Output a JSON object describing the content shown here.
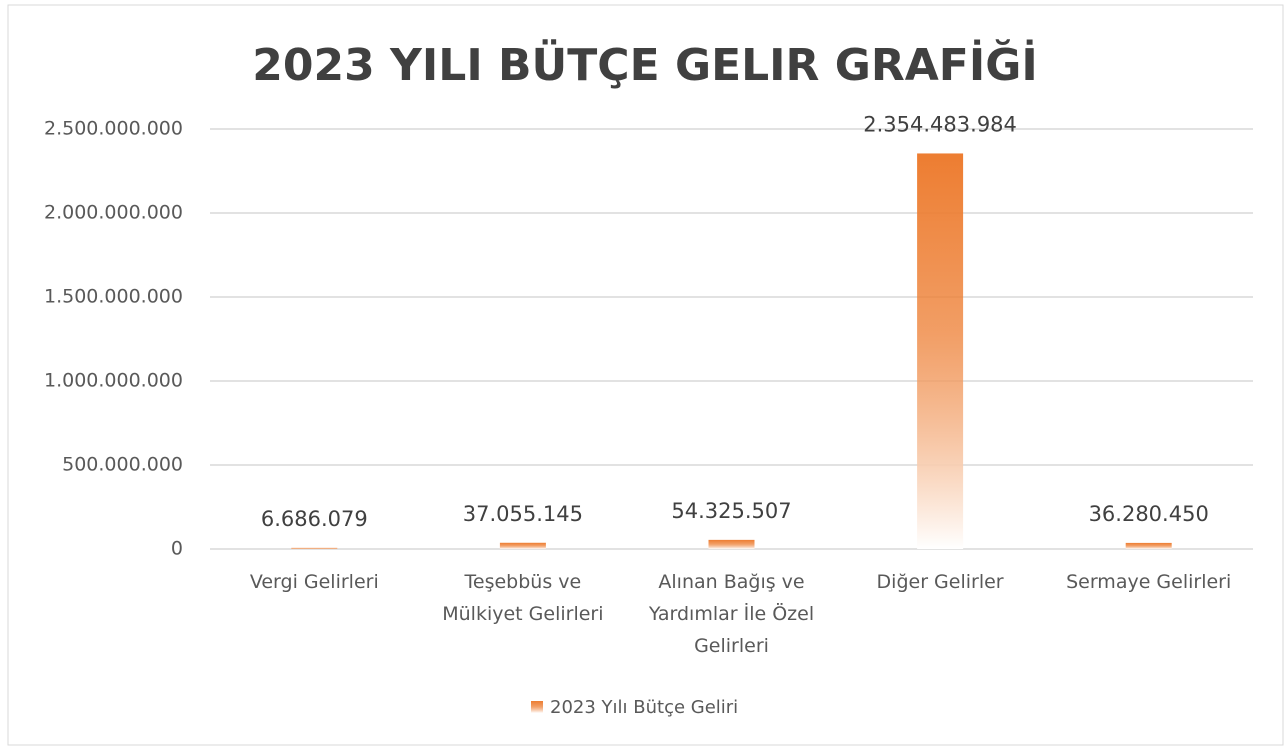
{
  "chart_data": {
    "type": "bar",
    "title": "2023 YILI BÜTÇE GELIR GRAFİĞİ",
    "categories": [
      "Vergi Gelirleri",
      "Teşebbüs ve Mülkiyet Gelirleri",
      "Alınan Bağış ve Yardımlar İle Özel Gelirleri",
      "Diğer Gelirler",
      "Sermaye Gelirleri"
    ],
    "series": [
      {
        "name": "2023 Yılı Bütçe Geliri",
        "color": "#ed7d31",
        "values": [
          6686079,
          37055145,
          54325507,
          2354483984,
          36280450
        ],
        "value_labels": [
          "6.686.079",
          "37.055.145",
          "54.325.507",
          "2.354.483.984",
          "36.280.450"
        ]
      }
    ],
    "ylim": [
      0,
      2500000000
    ],
    "yticks": [
      0,
      {
        "value": 500000000,
        "label": "500.000.000"
      },
      {
        "value": 1000000000,
        "label": "1.000.000.000"
      },
      {
        "value": 1500000000,
        "label": "1.500.000.000"
      },
      {
        "value": 2000000000,
        "label": "2.000.000.000"
      },
      {
        "value": 2500000000,
        "label": "2.500.000.000"
      }
    ],
    "grid": true,
    "legend": "bottom"
  }
}
